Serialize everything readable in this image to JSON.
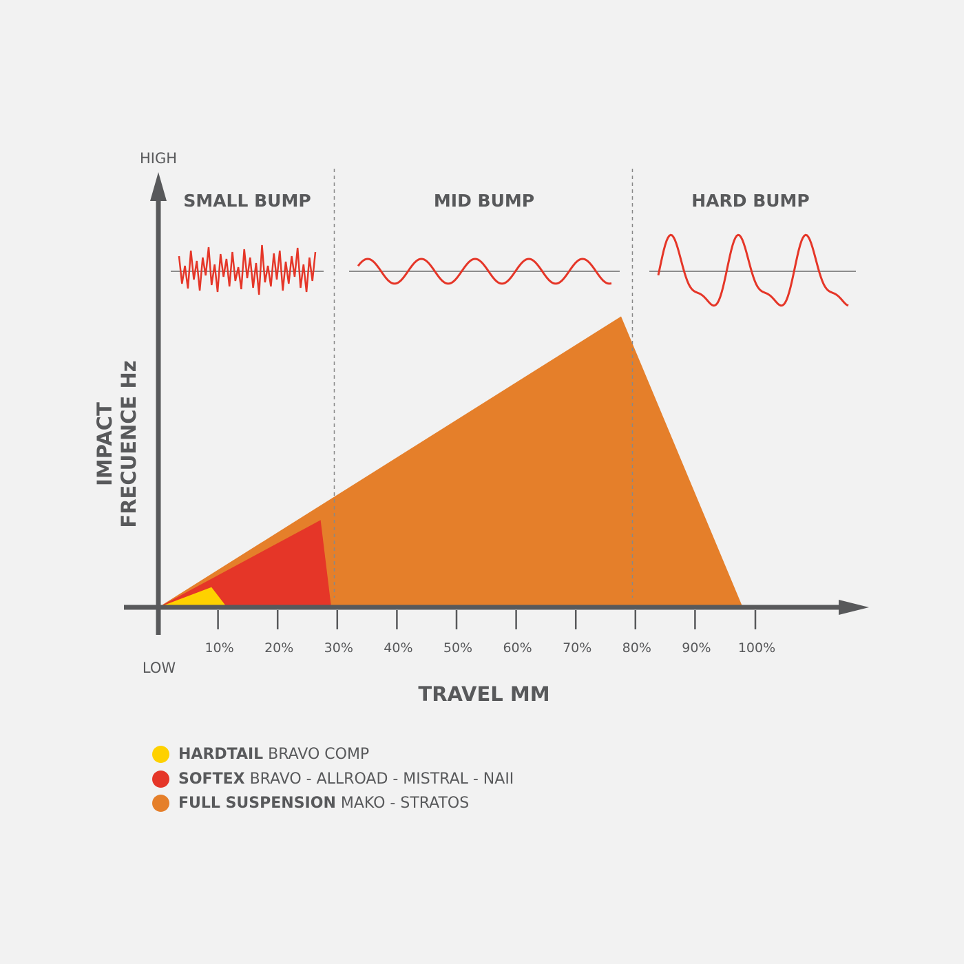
{
  "chart_data": {
    "type": "area",
    "x_title": "TRAVEL MM",
    "y_title_lines": [
      "IMPACT",
      "FRECUENCE Hz"
    ],
    "y_high": "HIGH",
    "y_low": "LOW",
    "x_ticks": [
      "10%",
      "20%",
      "30%",
      "40%",
      "50%",
      "60%",
      "70%",
      "80%",
      "90%",
      "100%"
    ],
    "x_tick_values": [
      10,
      20,
      30,
      40,
      50,
      60,
      70,
      80,
      90,
      100
    ],
    "xlim": [
      0,
      100
    ],
    "ylim": [
      0,
      100
    ],
    "zones": [
      {
        "label": "SMALL BUMP",
        "from": 0,
        "to": 29.5,
        "wave": "noise"
      },
      {
        "label": "MID BUMP",
        "from": 29.5,
        "to": 79.5,
        "wave": "sine"
      },
      {
        "label": "HARD BUMP",
        "from": 79.5,
        "to": 100,
        "wave": "large"
      }
    ],
    "series": [
      {
        "name": "FULL SUSPENSION",
        "models": "MAKO - STRATOS",
        "color": "#e57f2a",
        "points": [
          [
            0,
            0
          ],
          [
            77.6,
            65
          ],
          [
            98,
            0
          ]
        ]
      },
      {
        "name": "SOFTEX",
        "models": "BRAVO - ALLROAD - MISTRAL - NAII",
        "color": "#e53628",
        "points": [
          [
            0,
            0
          ],
          [
            27.2,
            19.5
          ],
          [
            29,
            0
          ]
        ]
      },
      {
        "name": "HARDTAIL",
        "models": "BRAVO COMP",
        "color": "#fed100",
        "points": [
          [
            0,
            0
          ],
          [
            8.9,
            4.5
          ],
          [
            11.5,
            0
          ]
        ]
      }
    ],
    "wave_color": "#e53628",
    "axis_color": "#58595b"
  }
}
